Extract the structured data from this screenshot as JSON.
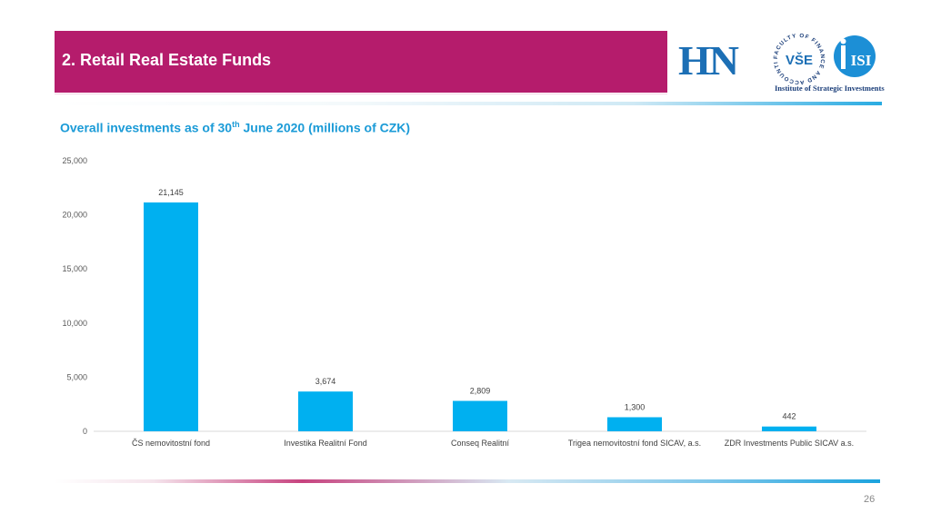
{
  "header": {
    "title": "2. Retail Real Estate Funds",
    "accent_color": "#b51c6c"
  },
  "logos": {
    "hn_text": "HN",
    "seal_text": "FACULTY OF FINANCE AND ACCOUNTING",
    "seal_center": "VŠE",
    "iisi_text": "ISI",
    "caption": "Institute of Strategic Investments"
  },
  "chart_data": {
    "type": "bar",
    "title_main": "Overall investments as of 30",
    "title_sup": "th",
    "title_rest": " June 2020 (millions of CZK)",
    "categories": [
      "ČS nemovitostní fond",
      "Investika Realitní Fond",
      "Conseq Realitní",
      "Trigea nemovitostní fond SICAV, a.s.",
      "ZDR Investments Public SICAV a.s."
    ],
    "values": [
      21145,
      3674,
      2809,
      1300,
      442
    ],
    "value_labels": [
      "21,145",
      "3,674",
      "2,809",
      "1,300",
      "442"
    ],
    "ylim": [
      0,
      25000
    ],
    "yticks": [
      0,
      5000,
      10000,
      15000,
      20000,
      25000
    ],
    "ytick_labels": [
      "0",
      "5,000",
      "10,000",
      "15,000",
      "20,000",
      "25,000"
    ],
    "grid": false,
    "bar_color": "#00b0f0"
  },
  "footer": {
    "page_number": "26"
  }
}
